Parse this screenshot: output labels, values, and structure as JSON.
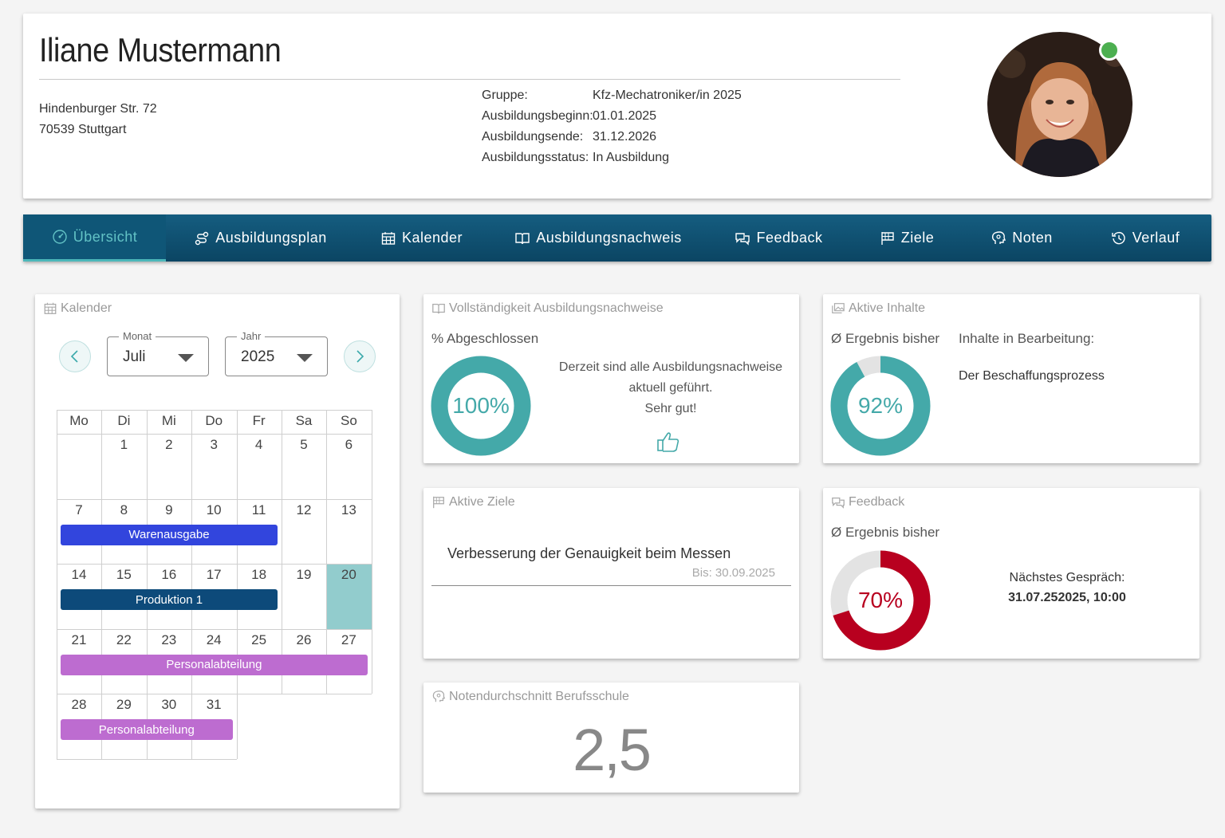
{
  "profile": {
    "name": "Iliane Mustermann",
    "address_line1": "Hindenburger Str. 72",
    "address_line2": "70539 Stuttgart",
    "info": [
      {
        "key": "Gruppe:",
        "value": "Kfz-Mechatroniker/in 2025"
      },
      {
        "key": "Ausbildungsbeginn:",
        "value": "01.01.2025"
      },
      {
        "key": "Ausbildungsende:",
        "value": "31.12.2026"
      },
      {
        "key": "Ausbildungsstatus:",
        "value": "In Ausbildung"
      }
    ],
    "online_color": "#4caf50"
  },
  "nav": {
    "items": [
      {
        "label": "Übersicht",
        "icon": "dashboard-icon",
        "active": true
      },
      {
        "label": "Ausbildungsplan",
        "icon": "route-icon"
      },
      {
        "label": "Kalender",
        "icon": "calendar-icon"
      },
      {
        "label": "Ausbildungsnachweis",
        "icon": "book-icon"
      },
      {
        "label": "Feedback",
        "icon": "chat-icon"
      },
      {
        "label": "Ziele",
        "icon": "flag-icon"
      },
      {
        "label": "Noten",
        "icon": "brain-icon"
      },
      {
        "label": "Verlauf",
        "icon": "history-icon"
      }
    ]
  },
  "calendar": {
    "title": "Kalender",
    "month_label": "Monat",
    "month_value": "Juli",
    "year_label": "Jahr",
    "year_value": "2025",
    "weekdays": [
      "Mo",
      "Di",
      "Mi",
      "Do",
      "Fr",
      "Sa",
      "So"
    ],
    "weeks": [
      [
        "",
        "1",
        "2",
        "3",
        "4",
        "5",
        "6"
      ],
      [
        "7",
        "8",
        "9",
        "10",
        "11",
        "12",
        "13"
      ],
      [
        "14",
        "15",
        "16",
        "17",
        "18",
        "19",
        "20"
      ],
      [
        "21",
        "22",
        "23",
        "24",
        "25",
        "26",
        "27"
      ],
      [
        "28",
        "29",
        "30",
        "31"
      ]
    ],
    "today": "20",
    "events": [
      {
        "label": "Warenausgabe",
        "week": 1,
        "start_col": 0,
        "end_col": 4,
        "color": "#3245dd"
      },
      {
        "label": "Produktion 1",
        "week": 2,
        "start_col": 0,
        "end_col": 4,
        "color": "#0d4a7a"
      },
      {
        "label": "Personalabteilung",
        "week": 3,
        "start_col": 0,
        "end_col": 6,
        "color": "#bd6cd0"
      },
      {
        "label": "Personalabteilung",
        "week": 4,
        "start_col": 0,
        "end_col": 3,
        "color": "#bd6cd0"
      }
    ]
  },
  "vollstaendigkeit": {
    "title": "Vollständigkeit Ausbildungsnachweise",
    "subtitle": "% Abgeschlossen",
    "percent": 100,
    "percent_label": "100%",
    "message_line1": "Derzeit sind alle Ausbildungsnachweise",
    "message_line2": "aktuell geführt.",
    "message_line3": "Sehr gut!",
    "color": "#44a9a9"
  },
  "aktive_inhalte": {
    "title": "Aktive Inhalte",
    "subtitle": "Ø Ergebnis bisher",
    "percent": 92,
    "percent_label": "92%",
    "in_progress_label": "Inhalte in Bearbeitung:",
    "in_progress_item": "Der Beschaffungsprozess",
    "color": "#44a9a9"
  },
  "aktive_ziele": {
    "title": "Aktive Ziele",
    "goal": "Verbesserung der Genauigkeit beim Messen",
    "due": "Bis: 30.09.2025"
  },
  "feedback": {
    "title": "Feedback",
    "subtitle": "Ø Ergebnis bisher",
    "percent": 70,
    "percent_label": "70%",
    "next_label": "Nächstes Gespräch:",
    "next_value": "31.07.252025, 10:00",
    "color": "#b8001f"
  },
  "noten": {
    "title": "Notendurchschnitt Berufsschule",
    "value": "2,5"
  }
}
